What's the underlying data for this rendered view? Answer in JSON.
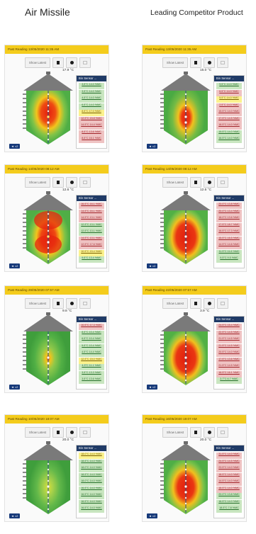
{
  "titles": {
    "left": "Air Missile",
    "right": "Leading Competitor Product"
  },
  "colors": {
    "header": "#f4cc1c",
    "sensor_header": "#1f3a66",
    "roof": "#7a7a7a",
    "cable": "#2a4e86",
    "hot": "#e01f10",
    "warm": "#f0c21f",
    "cool": "#57b84a"
  },
  "icons": {
    "record": "square-icon",
    "live": "dot-icon",
    "export": "box-icon",
    "expand": "expand-icon"
  },
  "panels": [
    {
      "header": "Past Reading 13/05/2020 11:35 AM",
      "show_latest": "Show Latest",
      "temp": "17.9 °C",
      "sensor_title": "Bin Sensor ...",
      "expand": "◄ ×2",
      "heat_shape": "bulge-top",
      "rows": [
        {
          "text": "3.5°C 14.0 %MC",
          "status": "green"
        },
        {
          "text": "3.5°C 14.0 %MC",
          "status": "green"
        },
        {
          "text": "4.5°C 14.0 %MC",
          "status": "green"
        },
        {
          "text": "6.5°C 14.0 %MC",
          "status": "green"
        },
        {
          "text": "8.5°C 17.0 %MC",
          "status": "yellow"
        },
        {
          "text": "12.5°C 15.8 %MC",
          "status": "red"
        },
        {
          "text": "14.5°C 14.4 %MC",
          "status": "red"
        },
        {
          "text": "8.5°C 13.6 %MC",
          "status": "red"
        },
        {
          "text": "8.5°C 16.1 %MC",
          "status": "red"
        }
      ]
    },
    {
      "header": "Past Reading 13/05/2020 11:35 AM",
      "show_latest": "Show Latest",
      "temp": "15.0 °C",
      "sensor_title": "Bin Sensor ...",
      "expand": "◄ ×2",
      "heat_shape": "narrow-core",
      "rows": [
        {
          "text": "9.5°C 14.0 %MC",
          "status": "green"
        },
        {
          "text": "6.5°C 14.0 %MC",
          "status": "red"
        },
        {
          "text": "5.5°C 14.0 %MC",
          "status": "yellow"
        },
        {
          "text": "2.5°C 14.0 %MC",
          "status": "red"
        },
        {
          "text": "15.5°C 14.0 %MC",
          "status": "red"
        },
        {
          "text": "17.5°C 14.5 %MC",
          "status": "red"
        },
        {
          "text": "18.5°C 14.0 %MC",
          "status": "red"
        },
        {
          "text": "19.5°C 14.0 %MC",
          "status": "green"
        },
        {
          "text": "16.5°C 14.0 %MC",
          "status": "green"
        }
      ]
    },
    {
      "header": "Past Reading 14/05/2020 08:12 AM",
      "show_latest": "Show Latest",
      "temp": "12.6 °C",
      "sensor_title": "Bin Sensor ...",
      "expand": "◄ ×2",
      "heat_shape": "hourglass",
      "rows": [
        {
          "text": "16.5°C 16.1 %MC",
          "status": "red"
        },
        {
          "text": "14.5°C 16.1 %MC",
          "status": "red"
        },
        {
          "text": "14.5°C 13.1 %MC",
          "status": "red"
        },
        {
          "text": "12.5°C 13.1 %MC",
          "status": "green"
        },
        {
          "text": "12.5°C 13.1 %MC",
          "status": "green"
        },
        {
          "text": "14.5°C 13.1 %MC",
          "status": "red"
        },
        {
          "text": "12.5°C 17.6 %MC",
          "status": "red"
        },
        {
          "text": "10.5°C 15.4 %MC",
          "status": "yellow"
        },
        {
          "text": "9.5°C 13.4 %MC",
          "status": "green"
        }
      ]
    },
    {
      "header": "Past Reading 14/05/2020 08:12 AM",
      "show_latest": "Show Latest",
      "temp": "12.6 °C",
      "sensor_title": "Bin Sensor ...",
      "expand": "◄ ×2",
      "heat_shape": "wide-core",
      "rows": [
        {
          "text": "20.0°C 13.8 %MC",
          "status": "red"
        },
        {
          "text": "20.0°C 13.4 %MC",
          "status": "red"
        },
        {
          "text": "18.0°C 13.6 %MC",
          "status": "red"
        },
        {
          "text": "17.5°C 18.7 %MC",
          "status": "red"
        },
        {
          "text": "16.5°C 17.3 %MC",
          "status": "red"
        },
        {
          "text": "15.5°C 16.5 %MC",
          "status": "red"
        },
        {
          "text": "14.5°C 14.6 %MC",
          "status": "red"
        },
        {
          "text": "11.5°C 11.6 %MC",
          "status": "green"
        },
        {
          "text": "9.5°C 9.5 %MC",
          "status": "green"
        }
      ]
    },
    {
      "header": "Past Reading 29/05/2020 07:57 AM",
      "show_latest": "Show Latest",
      "temp": "9.8 °C",
      "sensor_title": "Bin Sensor ...",
      "expand": "◄ ×2",
      "heat_shape": "column",
      "rows": [
        {
          "text": "10.5°C 17.3 %MC",
          "status": "red"
        },
        {
          "text": "8.5°C 10.4 %MC",
          "status": "green"
        },
        {
          "text": "6.5°C 10.4 %MC",
          "status": "green"
        },
        {
          "text": "5.5°C 10.4 %MC",
          "status": "green"
        },
        {
          "text": "4.5°C 14.4 %MC",
          "status": "green"
        },
        {
          "text": "12.5°C 15.0 %MC",
          "status": "yellow"
        },
        {
          "text": "4.5°C 11.1 %MC",
          "status": "green"
        },
        {
          "text": "3.5°C 13.3 %MC",
          "status": "green"
        },
        {
          "text": "3.5°C 13.6 %MC",
          "status": "green"
        }
      ]
    },
    {
      "header": "Past Reading 22/05/2020 07:57 AM",
      "show_latest": "Show Latest",
      "temp": "3.9 °C",
      "sensor_title": "Bin Sensor ...",
      "expand": "◄ ×2",
      "heat_shape": "wide-core",
      "rows": [
        {
          "text": "24.5°C 15.4 %MC",
          "status": "red"
        },
        {
          "text": "22.5°C 14.5 %MC",
          "status": "red"
        },
        {
          "text": "21.5°C 14.5 %MC",
          "status": "red"
        },
        {
          "text": "21.5°C 14.5 %MC",
          "status": "red"
        },
        {
          "text": "20.5°C 14.0 %MC",
          "status": "red"
        },
        {
          "text": "17.5°C 13.6 %MC",
          "status": "red"
        },
        {
          "text": "21.5°C 14.5 %MC",
          "status": "red"
        },
        {
          "text": "16.5°C 16.1 %MC",
          "status": "red"
        },
        {
          "text": "3.7°C 6.7 %MC",
          "status": "green"
        }
      ]
    },
    {
      "header": "Past Reading 10/05/2020 18:07 AM",
      "show_latest": "Show Latest",
      "temp": "20.0 °C",
      "sensor_title": "Bin Sensor ...",
      "expand": "◄ ×2",
      "heat_shape": "cool",
      "rows": [
        {
          "text": "18.0°C 14.0 %MC",
          "status": "yellow"
        },
        {
          "text": "18.5°C 14.0 %MC",
          "status": "green"
        },
        {
          "text": "18.0°C 14.0 %MC",
          "status": "green"
        },
        {
          "text": "18.5°C 14.0 %MC",
          "status": "green"
        },
        {
          "text": "18.0°C 14.0 %MC",
          "status": "green"
        },
        {
          "text": "16.5°C 14.0 %MC",
          "status": "green"
        },
        {
          "text": "16.5°C 14.0 %MC",
          "status": "green"
        },
        {
          "text": "16.5°C 14.0 %MC",
          "status": "green"
        },
        {
          "text": "16.5°C 14.0 %MC",
          "status": "green"
        }
      ]
    },
    {
      "header": "Past Reading 16/05/2020 19:07 AM",
      "show_latest": "Show Latest",
      "temp": "20.0 °C",
      "sensor_title": "Bin Sensor ...",
      "expand": "◄ ×2",
      "heat_shape": "tall-core",
      "rows": [
        {
          "text": "31.5°C 14.0 %MC",
          "status": "red"
        },
        {
          "text": "24.5°C 14.5 %MC",
          "status": "red"
        },
        {
          "text": "23.5°C 14.0 %MC",
          "status": "red"
        },
        {
          "text": "18.5°C 14.0 %MC",
          "status": "red"
        },
        {
          "text": "14.5°C 14.0 %MC",
          "status": "red"
        },
        {
          "text": "18.5°C 14.0 %MC",
          "status": "red"
        },
        {
          "text": "20.0°C 13.8 %MC",
          "status": "green"
        },
        {
          "text": "16.5°C 14.0 %MC",
          "status": "green"
        },
        {
          "text": "18.5°C 7.8 %MC",
          "status": "green"
        }
      ]
    }
  ]
}
